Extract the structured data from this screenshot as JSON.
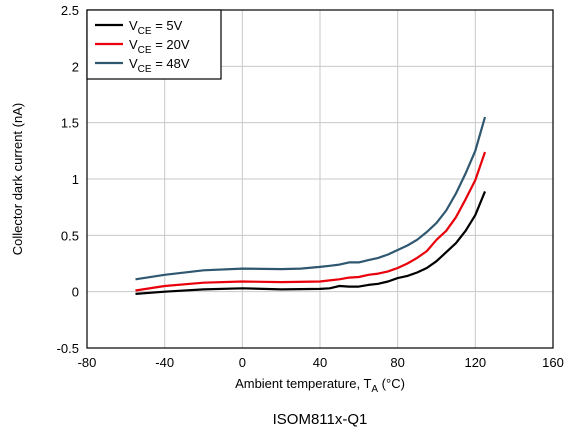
{
  "chart_data": {
    "type": "line",
    "title": "",
    "caption": "ISOM811x-Q1",
    "xlabel": {
      "main": "Ambient temperature, T",
      "sub": "A",
      "unit": " (°C)"
    },
    "ylabel": "Collector dark current (nA)",
    "xlim": [
      -80,
      160
    ],
    "ylim": [
      -0.5,
      2.5
    ],
    "xticks": [
      -80,
      -40,
      0,
      40,
      80,
      120,
      160
    ],
    "yticks": [
      -0.5,
      0,
      0.5,
      1,
      1.5,
      2,
      2.5
    ],
    "xtick_labels": [
      "-80",
      "-40",
      "0",
      "40",
      "80",
      "120",
      "160"
    ],
    "ytick_labels": [
      "-0.5",
      "0",
      "0.5",
      "1",
      "1.5",
      "2",
      "2.5"
    ],
    "grid": true,
    "legend_position": "top-left",
    "series": [
      {
        "name": "V_CE = 5V",
        "legend": {
          "main": "V",
          "sub": "CE",
          "rest": " = 5V"
        },
        "color": "#000000",
        "x": [
          -55,
          -40,
          -20,
          0,
          20,
          40,
          45,
          50,
          55,
          60,
          65,
          70,
          75,
          80,
          85,
          90,
          95,
          100,
          105,
          110,
          115,
          120,
          125
        ],
        "y": [
          -0.02,
          0.0,
          0.02,
          0.03,
          0.02,
          0.025,
          0.03,
          0.05,
          0.045,
          0.045,
          0.06,
          0.07,
          0.09,
          0.12,
          0.14,
          0.17,
          0.21,
          0.27,
          0.35,
          0.43,
          0.54,
          0.68,
          0.89
        ]
      },
      {
        "name": "V_CE = 20V",
        "legend": {
          "main": "V",
          "sub": "CE",
          "rest": " = 20V"
        },
        "color": "#e8000b",
        "x": [
          -55,
          -40,
          -20,
          0,
          20,
          40,
          45,
          50,
          55,
          60,
          65,
          70,
          75,
          80,
          85,
          90,
          95,
          100,
          105,
          110,
          115,
          120,
          125
        ],
        "y": [
          0.01,
          0.05,
          0.08,
          0.09,
          0.085,
          0.09,
          0.1,
          0.11,
          0.125,
          0.13,
          0.15,
          0.16,
          0.18,
          0.21,
          0.25,
          0.3,
          0.36,
          0.46,
          0.54,
          0.66,
          0.82,
          0.99,
          1.24
        ]
      },
      {
        "name": "V_CE = 48V",
        "legend": {
          "main": "V",
          "sub": "CE",
          "rest": " = 48V"
        },
        "color": "#2f5870",
        "x": [
          -55,
          -40,
          -20,
          0,
          20,
          30,
          40,
          45,
          50,
          55,
          60,
          65,
          70,
          75,
          80,
          85,
          90,
          95,
          100,
          105,
          110,
          115,
          120,
          125
        ],
        "y": [
          0.11,
          0.15,
          0.19,
          0.205,
          0.2,
          0.205,
          0.22,
          0.23,
          0.24,
          0.26,
          0.26,
          0.28,
          0.3,
          0.33,
          0.37,
          0.41,
          0.46,
          0.53,
          0.61,
          0.72,
          0.87,
          1.05,
          1.25,
          1.55
        ]
      }
    ]
  }
}
